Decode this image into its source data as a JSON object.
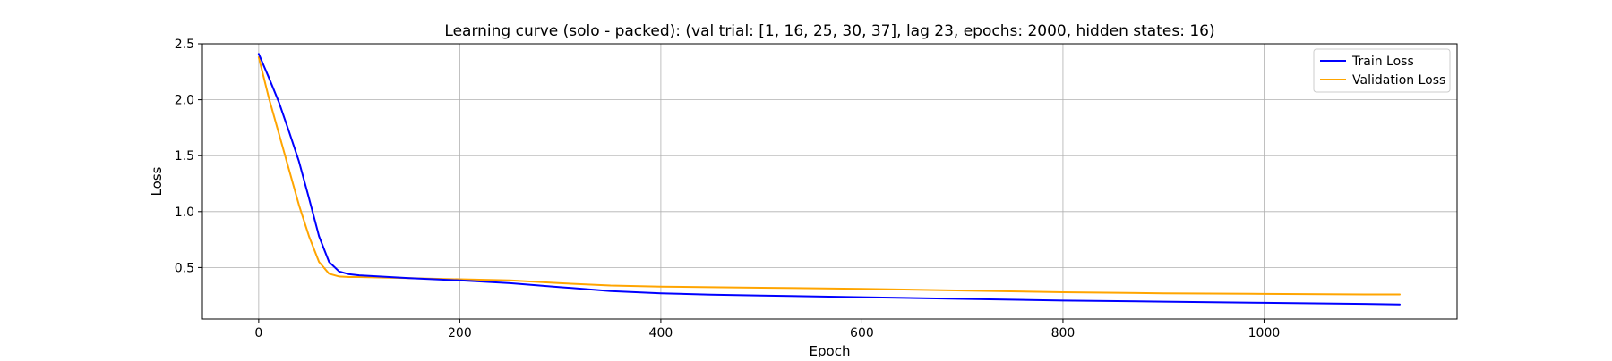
{
  "chart_data": {
    "type": "line",
    "title": "Learning curve (solo - packed): (val trial: [1, 16, 25, 30, 37], lag 23, epochs: 2000, hidden states: 16)",
    "xlabel": "Epoch",
    "ylabel": "Loss",
    "xlim": [
      -56,
      1192
    ],
    "ylim": [
      0.04,
      2.5
    ],
    "xticks": [
      0,
      200,
      400,
      600,
      800,
      1000
    ],
    "yticks": [
      0.5,
      1.0,
      1.5,
      2.0,
      2.5
    ],
    "xtick_labels": [
      "0",
      "200",
      "400",
      "600",
      "800",
      "1000"
    ],
    "ytick_labels": [
      "0.5",
      "1.0",
      "1.5",
      "2.0",
      "2.5"
    ],
    "grid": true,
    "legend_position": "top-right",
    "series": [
      {
        "name": "Train Loss",
        "color": "#0000ff",
        "x": [
          0,
          10,
          20,
          30,
          40,
          50,
          60,
          70,
          80,
          90,
          100,
          150,
          200,
          250,
          300,
          350,
          400,
          450,
          500,
          600,
          700,
          800,
          900,
          1000,
          1100,
          1135
        ],
        "y": [
          2.41,
          2.2,
          1.98,
          1.72,
          1.45,
          1.12,
          0.78,
          0.55,
          0.465,
          0.44,
          0.43,
          0.405,
          0.385,
          0.36,
          0.325,
          0.29,
          0.27,
          0.258,
          0.25,
          0.235,
          0.22,
          0.205,
          0.195,
          0.185,
          0.175,
          0.17
        ]
      },
      {
        "name": "Validation Loss",
        "color": "#ffa500",
        "x": [
          0,
          10,
          20,
          30,
          40,
          50,
          60,
          70,
          80,
          90,
          100,
          150,
          200,
          250,
          300,
          350,
          400,
          450,
          500,
          600,
          700,
          800,
          900,
          1000,
          1100,
          1135
        ],
        "y": [
          2.38,
          2.02,
          1.7,
          1.38,
          1.06,
          0.78,
          0.55,
          0.445,
          0.42,
          0.415,
          0.415,
          0.405,
          0.395,
          0.385,
          0.36,
          0.34,
          0.33,
          0.325,
          0.32,
          0.31,
          0.295,
          0.28,
          0.27,
          0.265,
          0.26,
          0.26
        ]
      }
    ]
  }
}
